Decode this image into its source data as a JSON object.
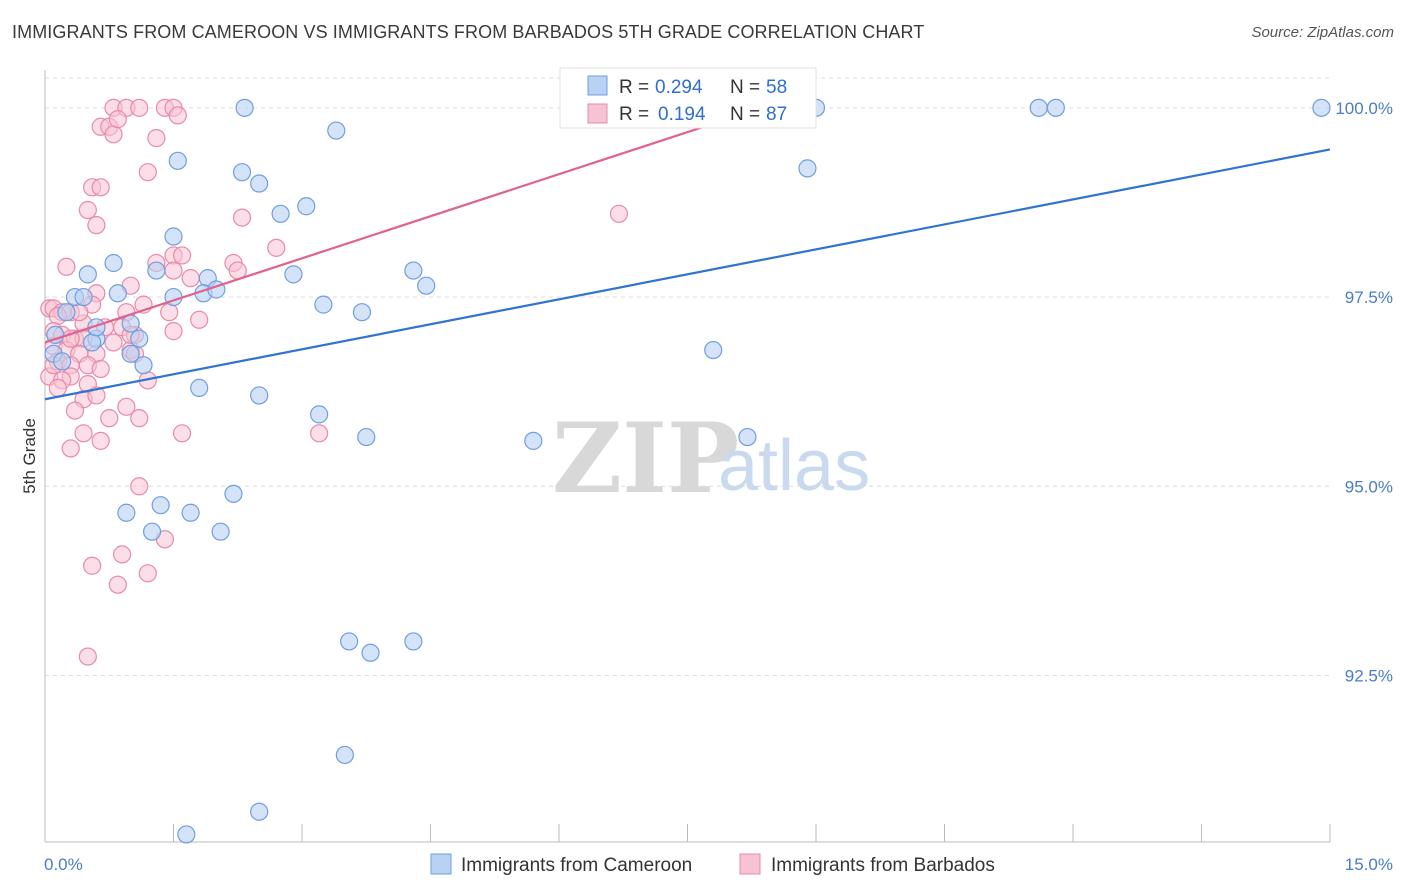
{
  "title": "IMMIGRANTS FROM CAMEROON VS IMMIGRANTS FROM BARBADOS 5TH GRADE CORRELATION CHART",
  "source": "Source: ZipAtlas.com",
  "watermark": {
    "zip": "ZIP",
    "atlas": "atlas"
  },
  "colors": {
    "blue_fill": "#b9d1f3",
    "blue_stroke": "#6f9ee0",
    "blue_line": "#2f74d0",
    "pink_fill": "#f7c3d3",
    "pink_stroke": "#e98aa8",
    "pink_line": "#e0628d",
    "axis_text": "#4a7cc7"
  },
  "legend": {
    "rows": [
      {
        "r_label": "R = ",
        "r_value": "0.294",
        "n_label": "N = ",
        "n_value": "58"
      },
      {
        "r_label": "R = ",
        "r_value": "0.194",
        "n_label": "N = ",
        "n_value": "87"
      }
    ]
  },
  "chart_data": {
    "type": "scatter",
    "title": "IMMIGRANTS FROM CAMEROON VS IMMIGRANTS FROM BARBADOS 5TH GRADE CORRELATION CHART",
    "xlabel": "",
    "ylabel": "5th Grade",
    "xlim": [
      0,
      15
    ],
    "ylim": [
      90.3,
      100.5
    ],
    "x_tick_labels": [
      "0.0%",
      "15.0%"
    ],
    "y_ticks": [
      92.5,
      95.0,
      97.5,
      100.0
    ],
    "y_tick_labels": [
      "92.5%",
      "95.0%",
      "97.5%",
      "100.0%"
    ],
    "series": [
      {
        "name": "Immigrants from Cameroon",
        "R": 0.294,
        "N": 58,
        "trend": {
          "x0": 0.0,
          "y0": 96.15,
          "x1": 15.0,
          "y1": 99.45
        },
        "points": [
          [
            2.33,
            100.0
          ],
          [
            3.4,
            99.7
          ],
          [
            9.0,
            100.0
          ],
          [
            11.6,
            100.0
          ],
          [
            11.8,
            100.0
          ],
          [
            14.9,
            100.0
          ],
          [
            1.55,
            99.3
          ],
          [
            2.3,
            99.15
          ],
          [
            2.5,
            99.0
          ],
          [
            2.75,
            98.6
          ],
          [
            3.05,
            98.7
          ],
          [
            8.9,
            99.2
          ],
          [
            1.5,
            98.3
          ],
          [
            0.8,
            97.95
          ],
          [
            0.5,
            97.8
          ],
          [
            1.3,
            97.85
          ],
          [
            1.9,
            97.75
          ],
          [
            2.9,
            97.8
          ],
          [
            4.3,
            97.85
          ],
          [
            4.45,
            97.65
          ],
          [
            0.35,
            97.5
          ],
          [
            0.45,
            97.5
          ],
          [
            0.85,
            97.55
          ],
          [
            1.5,
            97.5
          ],
          [
            1.85,
            97.55
          ],
          [
            2.0,
            97.6
          ],
          [
            3.25,
            97.4
          ],
          [
            3.7,
            97.3
          ],
          [
            0.25,
            97.3
          ],
          [
            1.0,
            97.15
          ],
          [
            0.12,
            97.0
          ],
          [
            0.6,
            96.95
          ],
          [
            0.55,
            96.9
          ],
          [
            1.1,
            96.95
          ],
          [
            0.1,
            96.75
          ],
          [
            0.2,
            96.65
          ],
          [
            1.0,
            96.75
          ],
          [
            1.15,
            96.6
          ],
          [
            7.8,
            96.8
          ],
          [
            1.8,
            96.3
          ],
          [
            2.5,
            96.2
          ],
          [
            3.2,
            95.95
          ],
          [
            3.75,
            95.65
          ],
          [
            5.7,
            95.6
          ],
          [
            8.2,
            95.65
          ],
          [
            2.2,
            94.9
          ],
          [
            1.35,
            94.75
          ],
          [
            0.95,
            94.65
          ],
          [
            1.7,
            94.65
          ],
          [
            1.25,
            94.4
          ],
          [
            2.05,
            94.4
          ],
          [
            3.55,
            92.95
          ],
          [
            3.8,
            92.8
          ],
          [
            4.3,
            92.95
          ],
          [
            3.5,
            91.45
          ],
          [
            2.5,
            90.7
          ],
          [
            1.65,
            90.4
          ],
          [
            0.6,
            97.1
          ]
        ]
      },
      {
        "name": "Immigrants from Barbados",
        "R": 0.194,
        "N": 87,
        "trend": {
          "x0": 0.0,
          "y0": 96.9,
          "x1": 8.5,
          "y1": 100.05
        },
        "points": [
          [
            0.8,
            100.0
          ],
          [
            0.95,
            100.0
          ],
          [
            1.1,
            100.0
          ],
          [
            1.4,
            100.0
          ],
          [
            1.5,
            100.0
          ],
          [
            1.55,
            99.9
          ],
          [
            0.65,
            99.75
          ],
          [
            0.75,
            99.75
          ],
          [
            0.8,
            99.65
          ],
          [
            1.3,
            99.6
          ],
          [
            0.85,
            99.85
          ],
          [
            1.2,
            99.15
          ],
          [
            0.55,
            98.95
          ],
          [
            0.65,
            98.95
          ],
          [
            0.5,
            98.65
          ],
          [
            0.6,
            98.45
          ],
          [
            2.3,
            98.55
          ],
          [
            6.7,
            98.6
          ],
          [
            2.7,
            98.15
          ],
          [
            1.5,
            98.05
          ],
          [
            1.6,
            98.05
          ],
          [
            0.25,
            97.9
          ],
          [
            1.3,
            97.95
          ],
          [
            1.5,
            97.85
          ],
          [
            2.2,
            97.95
          ],
          [
            2.25,
            97.85
          ],
          [
            1.7,
            97.75
          ],
          [
            1.0,
            97.65
          ],
          [
            0.6,
            97.55
          ],
          [
            0.55,
            97.4
          ],
          [
            0.05,
            97.35
          ],
          [
            0.1,
            97.35
          ],
          [
            0.2,
            97.3
          ],
          [
            0.3,
            97.3
          ],
          [
            0.15,
            97.25
          ],
          [
            0.95,
            97.3
          ],
          [
            1.15,
            97.4
          ],
          [
            1.45,
            97.3
          ],
          [
            1.8,
            97.2
          ],
          [
            0.45,
            97.15
          ],
          [
            0.7,
            97.1
          ],
          [
            0.9,
            97.1
          ],
          [
            0.1,
            97.05
          ],
          [
            0.2,
            97.0
          ],
          [
            0.35,
            96.95
          ],
          [
            0.45,
            96.95
          ],
          [
            1.05,
            97.0
          ],
          [
            1.5,
            97.05
          ],
          [
            0.1,
            96.85
          ],
          [
            0.25,
            96.8
          ],
          [
            0.4,
            96.75
          ],
          [
            0.6,
            96.75
          ],
          [
            1.0,
            96.8
          ],
          [
            1.05,
            96.75
          ],
          [
            0.15,
            96.65
          ],
          [
            0.3,
            96.6
          ],
          [
            0.5,
            96.6
          ],
          [
            0.65,
            96.55
          ],
          [
            0.05,
            96.45
          ],
          [
            0.3,
            96.45
          ],
          [
            0.2,
            96.4
          ],
          [
            0.5,
            96.35
          ],
          [
            1.2,
            96.4
          ],
          [
            0.45,
            96.15
          ],
          [
            0.6,
            96.2
          ],
          [
            0.95,
            96.05
          ],
          [
            0.35,
            96.0
          ],
          [
            0.75,
            95.9
          ],
          [
            1.1,
            95.9
          ],
          [
            0.45,
            95.7
          ],
          [
            0.65,
            95.6
          ],
          [
            1.6,
            95.7
          ],
          [
            3.2,
            95.7
          ],
          [
            0.3,
            95.5
          ],
          [
            1.1,
            95.0
          ],
          [
            1.4,
            94.3
          ],
          [
            0.9,
            94.1
          ],
          [
            0.55,
            93.95
          ],
          [
            1.2,
            93.85
          ],
          [
            0.85,
            93.7
          ],
          [
            0.5,
            92.75
          ],
          [
            0.1,
            96.6
          ],
          [
            0.4,
            97.3
          ],
          [
            0.8,
            96.9
          ],
          [
            0.15,
            96.3
          ],
          [
            0.3,
            96.95
          ],
          [
            1.0,
            97.0
          ]
        ]
      }
    ]
  },
  "bottom_legend": {
    "items": [
      {
        "label": "Immigrants from Cameroon"
      },
      {
        "label": "Immigrants from Barbados"
      }
    ]
  }
}
